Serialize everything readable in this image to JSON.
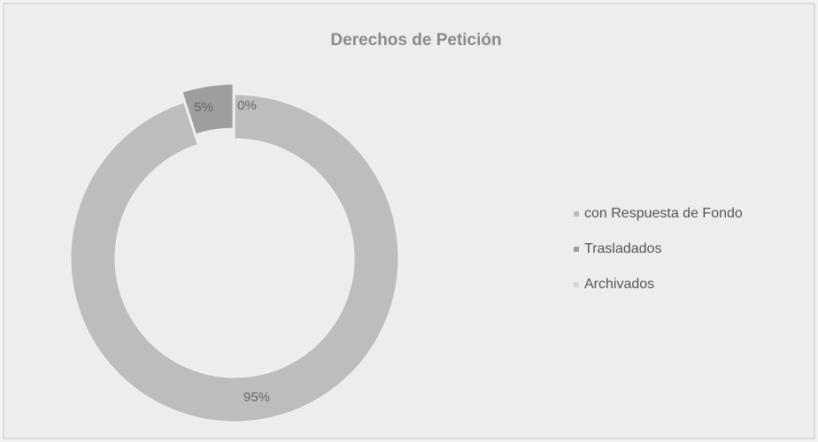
{
  "chart_data": {
    "type": "donut",
    "title": "Derechos de Petición",
    "categories": [
      "con Respuesta de Fondo",
      "Trasladados",
      "Archivados"
    ],
    "values": [
      95,
      5,
      0
    ],
    "value_labels": [
      "95%",
      "5%",
      "0%"
    ],
    "colors": [
      "#bdbdbd",
      "#9e9e9e",
      "#d6d6d6"
    ],
    "legend": "right"
  }
}
